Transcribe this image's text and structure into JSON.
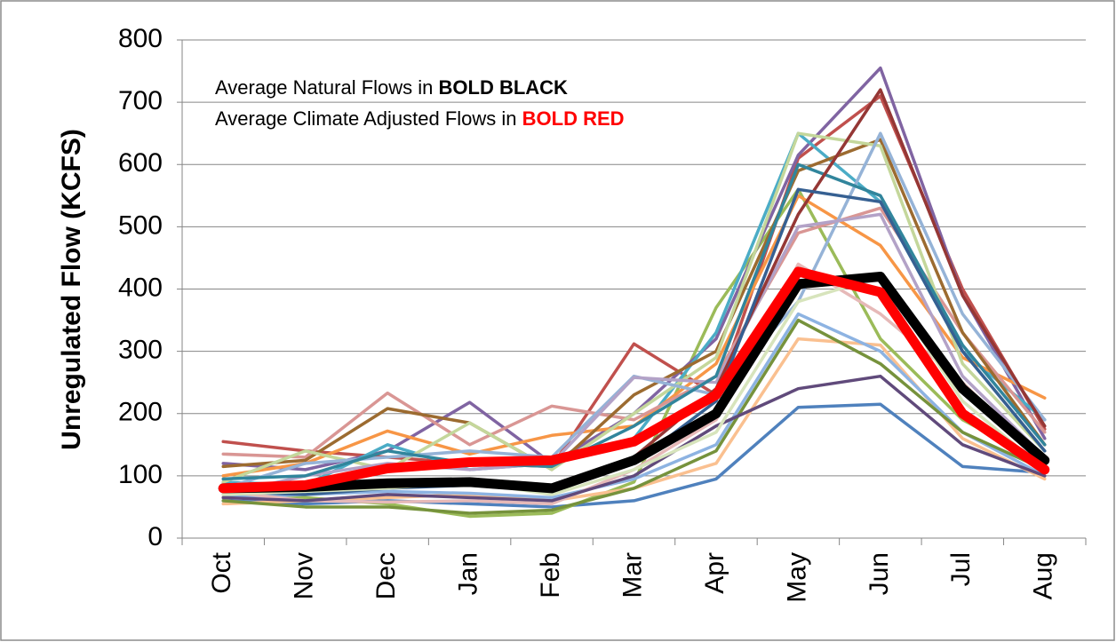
{
  "chart_data": {
    "type": "line",
    "y_label": "Unregulated Flow (KCFS)",
    "annotations": [
      {
        "text": "Average Natural Flows in ",
        "emphasis": "BOLD BLACK",
        "emphasis_color": "#000000"
      },
      {
        "text": "Average Climate Adjusted Flows in ",
        "emphasis": "BOLD RED",
        "emphasis_color": "#ff0000"
      }
    ],
    "categories": [
      "Oct",
      "Nov",
      "Dec",
      "Jan",
      "Feb",
      "Mar",
      "Apr",
      "May",
      "Jun",
      "Jul",
      "Aug"
    ],
    "ylim": [
      0,
      800
    ],
    "yticks": [
      0,
      100,
      200,
      300,
      400,
      500,
      600,
      700,
      800
    ],
    "grid": true,
    "series": [
      {
        "color": "#4f81bd",
        "values": [
          60,
          55,
          60,
          55,
          50,
          60,
          95,
          210,
          215,
          115,
          105
        ]
      },
      {
        "color": "#c0504d",
        "values": [
          155,
          140,
          130,
          120,
          115,
          312,
          230,
          610,
          710,
          400,
          175
        ]
      },
      {
        "color": "#9bbb59",
        "values": [
          70,
          65,
          55,
          35,
          40,
          90,
          370,
          560,
          320,
          190,
          120
        ]
      },
      {
        "color": "#8064a2",
        "values": [
          120,
          110,
          140,
          218,
          120,
          200,
          320,
          615,
          755,
          390,
          160
        ]
      },
      {
        "color": "#4bacc6",
        "values": [
          90,
          85,
          150,
          110,
          120,
          160,
          330,
          650,
          540,
          300,
          190
        ]
      },
      {
        "color": "#f79646",
        "values": [
          100,
          120,
          172,
          135,
          165,
          180,
          280,
          550,
          470,
          290,
          225
        ]
      },
      {
        "color": "#d99694",
        "values": [
          135,
          130,
          233,
          150,
          212,
          190,
          260,
          490,
          530,
          330,
          170
        ]
      },
      {
        "color": "#9c6b30",
        "values": [
          115,
          125,
          208,
          185,
          110,
          230,
          300,
          590,
          640,
          330,
          150
        ]
      },
      {
        "color": "#c4d79b",
        "values": [
          90,
          140,
          110,
          185,
          110,
          200,
          290,
          650,
          630,
          280,
          140
        ]
      },
      {
        "color": "#95b3d7",
        "values": [
          80,
          120,
          130,
          140,
          130,
          260,
          230,
          380,
          650,
          360,
          190
        ]
      },
      {
        "color": "#b3a2c7",
        "values": [
          70,
          100,
          120,
          110,
          120,
          258,
          250,
          500,
          520,
          260,
          130
        ]
      },
      {
        "color": "#fac090",
        "values": [
          55,
          60,
          65,
          70,
          60,
          80,
          120,
          320,
          310,
          160,
          95
        ]
      },
      {
        "color": "#8db3e2",
        "values": [
          65,
          70,
          75,
          72,
          65,
          95,
          150,
          360,
          300,
          170,
          100
        ]
      },
      {
        "color": "#e6b9b8",
        "values": [
          75,
          60,
          58,
          60,
          55,
          110,
          190,
          440,
          360,
          250,
          120
        ]
      },
      {
        "color": "#76923c",
        "values": [
          60,
          50,
          50,
          40,
          45,
          80,
          140,
          350,
          280,
          170,
          110
        ]
      },
      {
        "color": "#31859c",
        "values": [
          95,
          100,
          140,
          120,
          115,
          180,
          260,
          600,
          550,
          310,
          150
        ]
      },
      {
        "color": "#953735",
        "values": [
          85,
          80,
          90,
          95,
          85,
          130,
          240,
          520,
          720,
          390,
          180
        ]
      },
      {
        "color": "#604a7b",
        "values": [
          65,
          60,
          70,
          65,
          60,
          100,
          180,
          240,
          260,
          150,
          100
        ]
      },
      {
        "color": "#366092",
        "values": [
          75,
          70,
          80,
          85,
          75,
          120,
          220,
          560,
          540,
          300,
          140
        ]
      },
      {
        "color": "#d7e4bc",
        "values": [
          70,
          75,
          80,
          90,
          70,
          110,
          170,
          380,
          420,
          220,
          110
        ]
      },
      {
        "color": "#000000",
        "bold": true,
        "values": [
          80,
          82,
          88,
          90,
          80,
          125,
          200,
          408,
          420,
          240,
          125
        ]
      },
      {
        "color": "#ff0000",
        "bold": true,
        "values": [
          80,
          85,
          112,
          122,
          125,
          155,
          230,
          428,
          395,
          200,
          110
        ]
      }
    ]
  }
}
